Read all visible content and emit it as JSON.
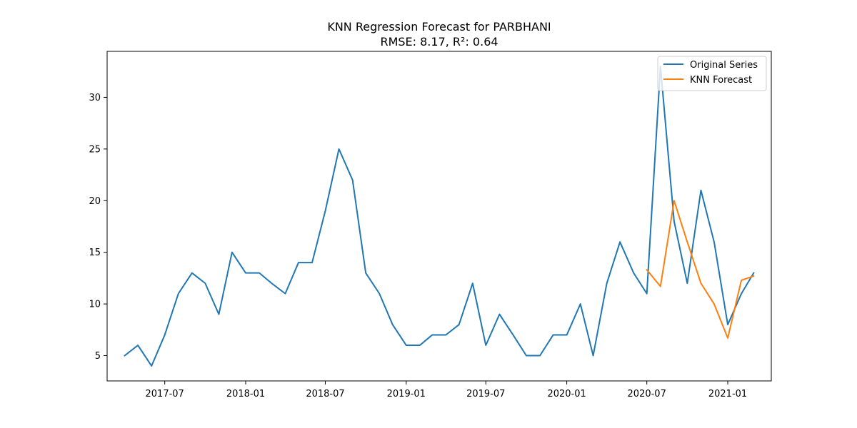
{
  "chart_data": {
    "type": "line",
    "title": "KNN Regression Forecast for PARBHANI",
    "subtitle": "RMSE: 8.17, R²: 0.64",
    "xlabel": "",
    "ylabel": "",
    "x_ticks": [
      "2017-07",
      "2018-01",
      "2018-07",
      "2019-01",
      "2019-07",
      "2020-01",
      "2020-07",
      "2021-01"
    ],
    "y_ticks": [
      5,
      10,
      15,
      20,
      25,
      30
    ],
    "xlim": [
      "2017-02-20",
      "2021-04-10"
    ],
    "ylim": [
      2.55,
      34.45
    ],
    "grid": false,
    "legend_position": "top-right",
    "series": [
      {
        "name": "Original Series",
        "color": "#1f77b4",
        "x": [
          "2017-04",
          "2017-05",
          "2017-06",
          "2017-07",
          "2017-08",
          "2017-09",
          "2017-10",
          "2017-11",
          "2017-12",
          "2018-01",
          "2018-02",
          "2018-03",
          "2018-04",
          "2018-05",
          "2018-06",
          "2018-07",
          "2018-08",
          "2018-09",
          "2018-10",
          "2018-11",
          "2018-12",
          "2019-01",
          "2019-02",
          "2019-03",
          "2019-04",
          "2019-05",
          "2019-06",
          "2019-07",
          "2019-08",
          "2019-09",
          "2019-10",
          "2019-11",
          "2019-12",
          "2020-01",
          "2020-02",
          "2020-03",
          "2020-04",
          "2020-05",
          "2020-06",
          "2020-07",
          "2020-08",
          "2020-09",
          "2020-10",
          "2020-11",
          "2020-12",
          "2021-01",
          "2021-02",
          "2021-03"
        ],
        "values": [
          5,
          6,
          4,
          7,
          11,
          13,
          12,
          9,
          15,
          13,
          13,
          12,
          11,
          14,
          14,
          19,
          25,
          22,
          13,
          11,
          8,
          6,
          6,
          7,
          7,
          8,
          12,
          6,
          9,
          7,
          5,
          5,
          7,
          7,
          10,
          5,
          12,
          16,
          13,
          11,
          33,
          18,
          12,
          21,
          16,
          8,
          11,
          13
        ]
      },
      {
        "name": "KNN Forecast",
        "color": "#ff7f0e",
        "x": [
          "2020-07",
          "2020-08",
          "2020-09",
          "2020-10",
          "2020-11",
          "2020-12",
          "2021-01",
          "2021-02",
          "2021-03"
        ],
        "values": [
          13.3,
          11.7,
          20,
          16,
          12,
          10,
          6.7,
          12.3,
          12.7
        ]
      }
    ]
  }
}
